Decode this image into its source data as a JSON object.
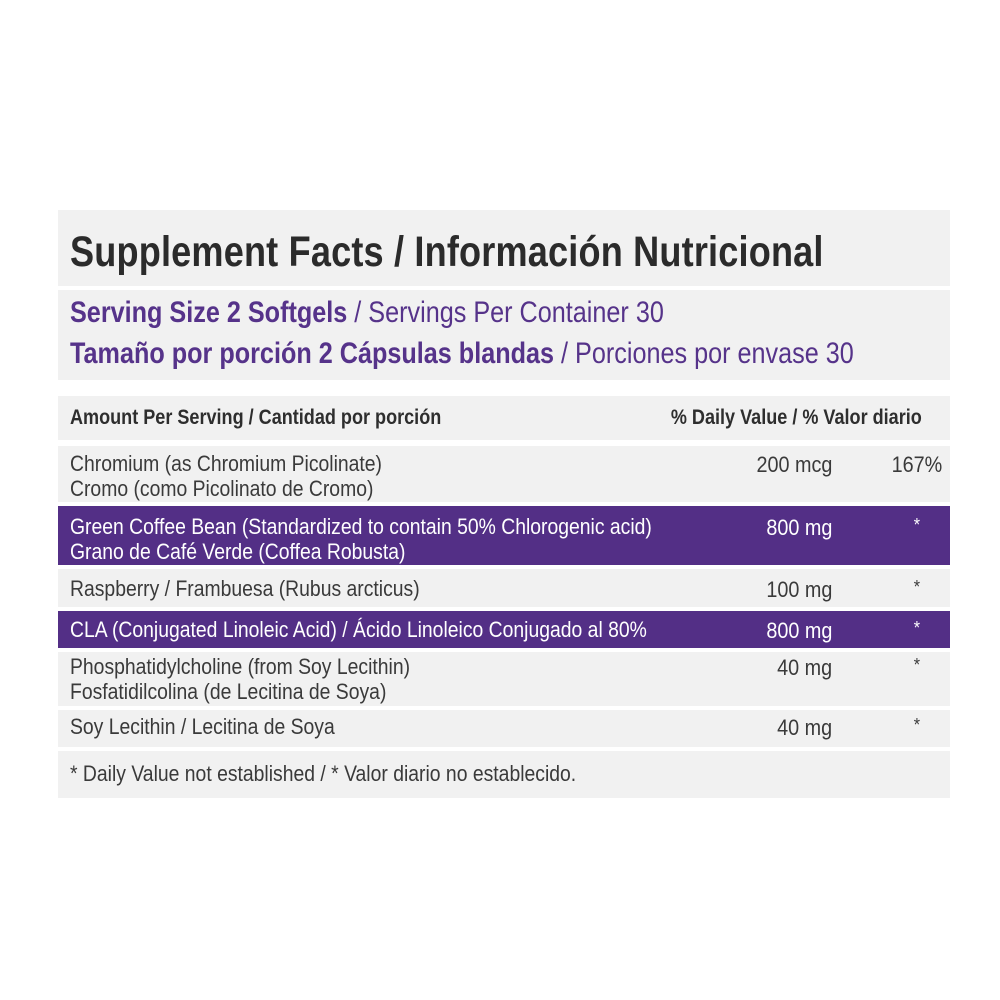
{
  "title": "Supplement Facts / Información Nutricional",
  "serving": {
    "line1_bold": "Serving Size 2 Softgels",
    "line1_rest": " / Servings Per Container 30",
    "line2_bold": "Tamaño por porción 2 Cápsulas blandas",
    "line2_rest": " / Porciones por envase 30"
  },
  "header": {
    "amount_per_serving": "Amount Per Serving / Cantidad por porción",
    "daily_value": "% Daily Value / % Valor diario"
  },
  "rows": [
    {
      "line1": "Chromium (as Chromium Picolinate)",
      "line2": "Cromo (como Picolinato de Cromo)",
      "amount": "200 mcg",
      "dv": "167%"
    },
    {
      "line1": "Green Coffee Bean (Standardized to contain 50% Chlorogenic acid)",
      "line2": "Grano de Café Verde (Coffea Robusta)",
      "amount": "800 mg",
      "dv": "*"
    },
    {
      "line1": "Raspberry / Frambuesa (Rubus arcticus)",
      "amount": "100 mg",
      "dv": "*"
    },
    {
      "line1": "CLA (Conjugated Linoleic Acid) / Ácido Linoleico Conjugado al 80%",
      "amount": "800 mg",
      "dv": "*"
    },
    {
      "line1": "Phosphatidylcholine (from Soy Lecithin)",
      "line2": "Fosfatidilcolina (de Lecitina de Soya)",
      "amount": "40 mg",
      "dv": "*"
    },
    {
      "line1": "Soy Lecithin / Lecitina de Soya",
      "amount": "40 mg",
      "dv": "*"
    }
  ],
  "footnote": "* Daily Value not established / * Valor diario no establecido.",
  "colors": {
    "accent_purple": "#532f86",
    "text_purple": "#56338a",
    "panel_gray": "#f1f1f1",
    "text_dark": "#2b2b2b"
  }
}
